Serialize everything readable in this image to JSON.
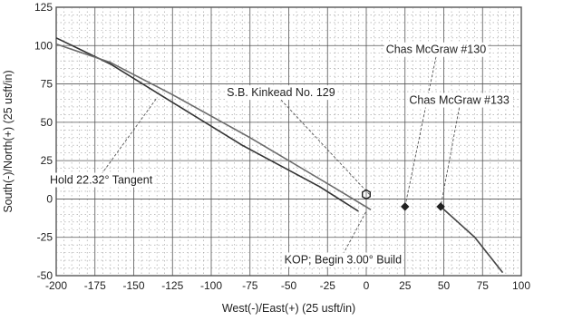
{
  "chart_data": {
    "type": "line",
    "title": "",
    "xlabel": "West(-)/East(+) (25 usft/in)",
    "ylabel": "South(-)/North(+) (25 usft/in)",
    "xlim": [
      -200,
      100
    ],
    "ylim": [
      -50,
      125
    ],
    "xticks": [
      -200,
      -175,
      -150,
      -125,
      -100,
      -75,
      -50,
      -25,
      0,
      25,
      50,
      75,
      100
    ],
    "yticks": [
      -50,
      -25,
      0,
      25,
      50,
      75,
      100,
      125
    ],
    "xtick_labels": [
      "-200",
      "-175",
      "-150",
      "-125",
      "-100",
      "-75",
      "-50",
      "-25",
      "0",
      "25",
      "50",
      "75",
      "100"
    ],
    "ytick_labels": [
      "-50",
      "-25",
      "0",
      "25",
      "50",
      "75",
      "100",
      "125"
    ],
    "grid": true,
    "series": [
      {
        "name": "",
        "color": "#333333",
        "points": [
          [
            -5,
            -8
          ],
          [
            -30,
            8
          ],
          [
            -80,
            35
          ],
          [
            -125,
            63
          ],
          [
            -165,
            88
          ],
          [
            -200,
            105
          ]
        ]
      },
      {
        "name": "",
        "color": "#6a6a6a",
        "points": [
          [
            3,
            -7
          ],
          [
            -25,
            10
          ],
          [
            -75,
            40
          ],
          [
            -125,
            68
          ],
          [
            -165,
            89
          ],
          [
            -200,
            101
          ]
        ]
      },
      {
        "name": "",
        "color": "#444444",
        "points": [
          [
            48,
            -5
          ],
          [
            70,
            -25
          ],
          [
            88,
            -48
          ]
        ]
      }
    ],
    "markers": [
      {
        "x": 0,
        "y": 3,
        "shape": "hexagon"
      },
      {
        "x": 25,
        "y": -5,
        "shape": "diamond"
      },
      {
        "x": 48,
        "y": -5,
        "shape": "diamond"
      }
    ],
    "annotations": [
      {
        "text": "Chas McGraw #130",
        "tx": 45,
        "ty": 95,
        "ax": 25,
        "ay": -5
      },
      {
        "text": "S.B. Kinkead No. 129",
        "tx": -55,
        "ty": 67,
        "ax": 2,
        "ay": 3
      },
      {
        "text": "Chas McGraw #133",
        "tx": 60,
        "ty": 62,
        "ax": 48,
        "ay": -5
      },
      {
        "text": "Hold 22.32° Tangent",
        "tx": -171,
        "ty": 10,
        "ax": -135,
        "ay": 66
      },
      {
        "text": "KOP; Begin 3.00° Build",
        "tx": -15,
        "ty": -42,
        "ax": 0,
        "ay": -8
      }
    ]
  }
}
